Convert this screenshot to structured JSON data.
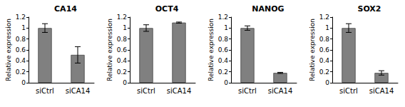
{
  "chart_data": [
    {
      "type": "bar",
      "title": "CA14",
      "y_label": "Relative expression",
      "categories": [
        "siCtrl",
        "siCA14"
      ],
      "values": [
        1.0,
        0.51
      ],
      "errors": [
        0.08,
        0.15
      ],
      "color": "#808080",
      "ylim": [
        0,
        1.2
      ],
      "yticks": [
        0,
        0.2,
        0.4,
        0.6,
        0.8,
        1,
        1.2
      ],
      "grid": false
    },
    {
      "type": "bar",
      "title": "OCT4",
      "y_label": "Relative expression",
      "categories": [
        "siCtrl",
        "siCA14"
      ],
      "values": [
        1.0,
        1.1
      ],
      "errors": [
        0.06,
        0.01
      ],
      "color": "#808080",
      "ylim": [
        0,
        1.2
      ],
      "yticks": [
        0,
        0.2,
        0.4,
        0.6,
        0.8,
        1,
        1.2
      ],
      "grid": false
    },
    {
      "type": "bar",
      "title": "NANOG",
      "y_label": "Relative expression",
      "categories": [
        "siCtrl",
        "siCA14"
      ],
      "values": [
        1.0,
        0.18
      ],
      "errors": [
        0.04,
        0.01
      ],
      "color": "#808080",
      "ylim": [
        0,
        1.2
      ],
      "yticks": [
        0,
        0.2,
        0.4,
        0.6,
        0.8,
        1,
        1.2
      ],
      "grid": false
    },
    {
      "type": "bar",
      "title": "SOX2",
      "y_label": "Relative expression",
      "categories": [
        "siCtrl",
        "siCA14"
      ],
      "values": [
        1.0,
        0.18
      ],
      "errors": [
        0.08,
        0.04
      ],
      "color": "#808080",
      "ylim": [
        0,
        1.2
      ],
      "yticks": [
        0,
        0.2,
        0.4,
        0.6,
        0.8,
        1,
        1.2
      ],
      "grid": false
    }
  ]
}
